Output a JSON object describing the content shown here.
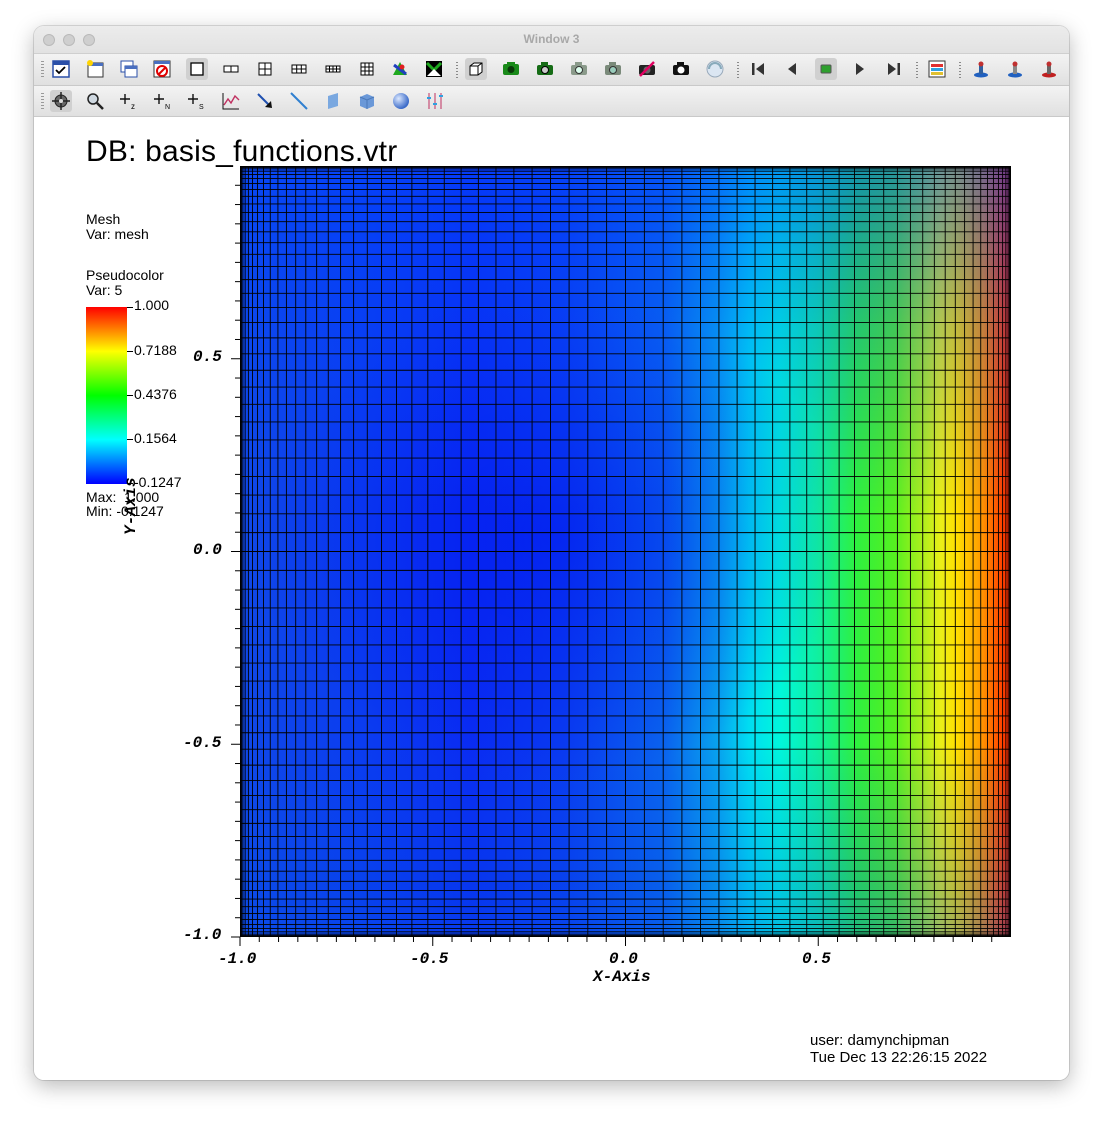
{
  "window": {
    "title": "Window 3"
  },
  "toolbar1": {
    "icons": [
      "active-window-icon",
      "new-window-icon",
      "clone-window-icon",
      "delete-window-icon",
      "layout-1x1-icon",
      "layout-1x2-icon",
      "layout-2x2-icon",
      "layout-2x3-icon",
      "layout-2x4-icon",
      "layout-3x3-icon",
      "lock-view-icon",
      "toggle-spin-icon",
      "view-3d-icon",
      "toggle-camera-icon",
      "save-image-icon",
      "camera-icon",
      "camera-alt-icon",
      "camera-clear-icon",
      "camera-lock-icon",
      "spin-icon",
      "first-frame-icon",
      "reverse-icon",
      "stop-icon",
      "play-icon",
      "last-frame-icon",
      "color-table-icon",
      "engine-icon",
      "engine-alt-icon",
      "engine-close-icon"
    ]
  },
  "toolbar2": {
    "icons": [
      "navigate-icon",
      "zoom-icon",
      "lineout-z-icon",
      "lineout-n-icon",
      "lineout-s-icon",
      "curve-icon",
      "pick-icon",
      "line-icon",
      "plane-icon",
      "box-icon",
      "sphere-icon",
      "axis-sliders-icon"
    ]
  },
  "viz": {
    "db_title": "DB: basis_functions.vtr",
    "mesh_legend": {
      "plot": "Mesh",
      "var": "Var: mesh"
    },
    "pseudo_legend": {
      "plot": "Pseudocolor",
      "var": "Var: 5",
      "labels": [
        "1.000",
        "0.7188",
        "0.4376",
        "0.1564",
        "-0.1247"
      ],
      "max": "Max:  1.000",
      "min": "Min: -0.1247",
      "colors": [
        "#ff0000",
        "#ffff00",
        "#00ff00",
        "#00ffff",
        "#0000ff"
      ]
    },
    "x_axis": {
      "title": "X-Axis",
      "ticks": [
        "-1.0",
        "-0.5",
        "0.0",
        "0.5"
      ],
      "range": [
        -1,
        1
      ]
    },
    "y_axis": {
      "title": "Y-Axis",
      "ticks": [
        "0.5",
        "0.0",
        "-0.5",
        "-1.0"
      ],
      "range": [
        -1,
        1
      ]
    }
  },
  "footer": {
    "user": "user: damynchipman",
    "date": "Tue Dec 13 22:26:15 2022"
  }
}
